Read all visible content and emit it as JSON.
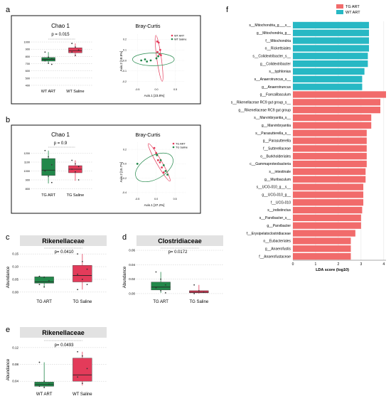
{
  "colors": {
    "teal": "#27b8c4",
    "salmon": "#f16b6b",
    "green": "#22884a",
    "red": "#e33b5a",
    "gray_bar": "#e2e2e2"
  },
  "panels": {
    "a": {
      "letter": "a",
      "chao_title": "Chao 1",
      "pvalue": "p = 0.015",
      "bray_title": "Bray-Curtis",
      "groups": [
        "WT ART",
        "WT Saline"
      ],
      "legend": [
        "WT ART",
        "WT Saline"
      ],
      "axis1": "Axis.1 [23.8%]",
      "axis2": "Axis.2 [18.8%]",
      "yticks": [
        "1000",
        "900",
        "800",
        "700",
        "600",
        "500",
        "400"
      ],
      "bray_yticks": [
        "0.2",
        "0.1",
        "0.0",
        "-0.1",
        "-0.2"
      ],
      "bray_xticks": [
        "-0.5",
        "0.0",
        "0.5"
      ]
    },
    "b": {
      "letter": "b",
      "chao_title": "Chao 1",
      "pvalue": "p = 0.9",
      "bray_title": "Bray-Curtis",
      "groups": [
        "TG ART",
        "TG Saline"
      ],
      "legend": [
        "TG ART",
        "TG Saline"
      ],
      "axis1": "Axis.1 [37.2%]",
      "axis2": "Axis.2 [15.7%]",
      "yticks": [
        "1200",
        "1100",
        "1000",
        "900",
        "800"
      ],
      "bray_yticks": [
        "0.2",
        "0.0",
        "-0.2",
        "-0.4"
      ],
      "bray_xticks": [
        "-0.5",
        "0.0",
        "0.5"
      ]
    },
    "c": {
      "letter": "c",
      "title": "Rikenellaceae",
      "pvalue": "p= 0.0410",
      "ylabel": "Abundance",
      "groups": [
        "TG ART",
        "TG Saline"
      ],
      "yticks": [
        "0.15",
        "0.10",
        "0.05",
        "0.00"
      ]
    },
    "d": {
      "letter": "d",
      "title": "Clostridiaceae",
      "pvalue": "p= 0.0172",
      "ylabel": "Abundance",
      "groups": [
        "TG ART",
        "TG Saline"
      ],
      "yticks": [
        "0.06",
        "0.04",
        "0.02",
        "0.00"
      ]
    },
    "e": {
      "letter": "e",
      "title": "Rikenellaceae",
      "pvalue": "p= 0.0493",
      "ylabel": "Abundance",
      "groups": [
        "WT ART",
        "WT Saline"
      ],
      "yticks": [
        "0.12",
        "0.08",
        "0.04"
      ]
    },
    "f": {
      "letter": "f"
    }
  },
  "chart_data": [
    {
      "type": "bar",
      "title": "",
      "xlabel": "LDA score (log10)",
      "ylabel": "",
      "xlim": [
        0,
        4.1
      ],
      "xticks": [
        "0",
        "1",
        "2",
        "3",
        "4"
      ],
      "legend": [
        {
          "name": "TG ART",
          "color": "#f16b6b"
        },
        {
          "name": "WT ART",
          "color": "#27b8c4"
        }
      ],
      "legend_position": "top-right",
      "categories": [
        "s__Mitochondria_g___s__",
        "g__Mitochondria_g__",
        "f__Mitochondria",
        "o__Rickettsiales",
        "s__Colidextribacter_s__",
        "g__Colidextribacter",
        "s__typhlonius",
        "s__Anaerotruncus_s__",
        "g__Anaerotruncus",
        "g__Faecalibaculum",
        "s__Rikenellaceae RC9 gut group_s__",
        "g__Rikenellaceae RC9 gut group",
        "s__Marvinbryantia_s__",
        "g__Marvinbryantia",
        "s__Parasutterella_s__",
        "g__Parasutterella",
        "f__Sutterellaceae",
        "o__Burkholderiales",
        "c__Gammaproteobacteria",
        "s__intestinale",
        "g__Muribaculum",
        "s__UCG-010_g__s__",
        "g__UCG-010_g__",
        "f__UCG-010",
        "s__indistinctus",
        "s__Parvibacter_s__",
        "g__Parvibacter",
        "f__Erysipelatoclostridiaceae",
        "o__Eubacteriales",
        "g__Anaerofustis",
        "f__Anaerofustaceae"
      ],
      "values": [
        3.35,
        3.35,
        3.35,
        3.35,
        3.3,
        3.3,
        3.15,
        3.05,
        3.05,
        4.1,
        3.85,
        3.85,
        3.45,
        3.45,
        3.25,
        3.25,
        3.25,
        3.25,
        3.25,
        3.2,
        3.2,
        3.1,
        3.1,
        3.1,
        3.05,
        3.0,
        3.0,
        2.75,
        2.55,
        2.55,
        2.55
      ],
      "groups": [
        "WT ART",
        "WT ART",
        "WT ART",
        "WT ART",
        "WT ART",
        "WT ART",
        "WT ART",
        "WT ART",
        "WT ART",
        "TG ART",
        "TG ART",
        "TG ART",
        "TG ART",
        "TG ART",
        "TG ART",
        "TG ART",
        "TG ART",
        "TG ART",
        "TG ART",
        "TG ART",
        "TG ART",
        "TG ART",
        "TG ART",
        "TG ART",
        "TG ART",
        "TG ART",
        "TG ART",
        "TG ART",
        "TG ART",
        "TG ART",
        "TG ART"
      ]
    },
    {
      "type": "box",
      "title": "Rikenellaceae",
      "ylabel": "Abundance",
      "ylim": [
        -0.02,
        0.17
      ],
      "categories": [
        "TG ART",
        "TG Saline"
      ],
      "series": [
        {
          "name": "TG ART",
          "q1": 0.035,
          "median": 0.04,
          "q3": 0.06,
          "whisker_low": 0.02,
          "whisker_high": 0.062,
          "points": [
            0.062,
            0.058,
            0.045,
            0.03,
            0.02
          ]
        },
        {
          "name": "TG Saline",
          "q1": 0.04,
          "median": 0.065,
          "q3": 0.105,
          "whisker_low": 0.01,
          "whisker_high": 0.15,
          "points": [
            0.15,
            0.12,
            0.09,
            0.07,
            0.05,
            0.03,
            0.01
          ]
        }
      ]
    },
    {
      "type": "box",
      "title": "Clostridiaceae",
      "ylabel": "Abundance",
      "ylim": [
        -0.005,
        0.062
      ],
      "categories": [
        "TG ART",
        "TG Saline"
      ],
      "series": [
        {
          "name": "TG ART",
          "q1": 0.005,
          "median": 0.009,
          "q3": 0.016,
          "whisker_low": 0.001,
          "whisker_high": 0.03,
          "points": [
            0.03,
            0.02,
            0.012,
            0.008,
            0.004,
            0.001
          ]
        },
        {
          "name": "TG Saline",
          "q1": 0.001,
          "median": 0.002,
          "q3": 0.004,
          "whisker_low": 0.0,
          "whisker_high": 0.012,
          "points": [
            0.012,
            0.004,
            0.002,
            0.0
          ]
        }
      ]
    },
    {
      "type": "box",
      "title": "Rikenellaceae",
      "ylabel": "Abundance",
      "ylim": [
        0.02,
        0.135
      ],
      "categories": [
        "WT ART",
        "WT Saline"
      ],
      "series": [
        {
          "name": "WT ART",
          "q1": 0.028,
          "median": 0.032,
          "q3": 0.038,
          "whisker_low": 0.025,
          "whisker_high": 0.085,
          "points": [
            0.085,
            0.04,
            0.033,
            0.028,
            0.025
          ]
        },
        {
          "name": "WT Saline",
          "q1": 0.04,
          "median": 0.055,
          "q3": 0.095,
          "whisker_low": 0.03,
          "whisker_high": 0.11,
          "points": [
            0.11,
            0.1,
            0.07,
            0.05,
            0.035
          ]
        }
      ]
    },
    {
      "type": "box",
      "title": "Chao 1",
      "ylim": [
        380,
        1030
      ],
      "categories": [
        "WT ART",
        "WT Saline"
      ],
      "series": [
        {
          "name": "WT ART",
          "q1": 735,
          "median": 760,
          "q3": 785,
          "whisker_low": 700,
          "whisker_high": 860,
          "points": [
            860,
            790,
            765,
            740,
            705,
            690
          ]
        },
        {
          "name": "WT Saline",
          "q1": 850,
          "median": 880,
          "q3": 920,
          "whisker_low": 800,
          "whisker_high": 980,
          "points": [
            980,
            930,
            890,
            860,
            815
          ]
        }
      ]
    },
    {
      "type": "box",
      "title": "Chao 1",
      "ylim": [
        780,
        1260
      ],
      "categories": [
        "TG ART",
        "TG Saline"
      ],
      "series": [
        {
          "name": "TG ART",
          "q1": 950,
          "median": 1010,
          "q3": 1140,
          "whisker_low": 860,
          "whisker_high": 1230,
          "points": [
            1230,
            1160,
            1070,
            1000,
            940,
            870
          ]
        },
        {
          "name": "TG Saline",
          "q1": 980,
          "median": 1020,
          "q3": 1060,
          "whisker_low": 890,
          "whisker_high": 1120,
          "points": [
            1120,
            1080,
            1050,
            1020,
            990,
            900
          ]
        }
      ]
    },
    {
      "type": "scatter",
      "title": "Bray-Curtis",
      "xlabel": "Axis.1 [23.8%]",
      "ylabel": "Axis.2 [18.8%]",
      "xlim": [
        -0.75,
        0.75
      ],
      "ylim": [
        -0.25,
        0.25
      ],
      "series": [
        {
          "name": "WT ART",
          "x": [
            0.02,
            0.06,
            0.1,
            0.03,
            0.08,
            0.12
          ],
          "y": [
            0.18,
            0.17,
            0.1,
            0.08,
            0.06,
            0.05
          ]
        },
        {
          "name": "WT Saline",
          "x": [
            -0.4,
            -0.3,
            -0.25,
            -0.15,
            0.0,
            0.05
          ],
          "y": [
            0.0,
            0.01,
            -0.01,
            0.0,
            0.02,
            0.04
          ]
        }
      ]
    },
    {
      "type": "scatter",
      "title": "Bray-Curtis",
      "xlabel": "Axis.1 [37.2%]",
      "ylabel": "Axis.2 [15.7%]",
      "xlim": [
        -0.75,
        0.8
      ],
      "ylim": [
        -0.45,
        0.3
      ],
      "series": [
        {
          "name": "TG ART",
          "x": [
            -0.05,
            0.0,
            0.05,
            0.1,
            0.15,
            0.2
          ],
          "y": [
            0.22,
            0.15,
            0.05,
            0.02,
            -0.05,
            -0.12
          ]
        },
        {
          "name": "TG Saline",
          "x": [
            -0.5,
            0.02,
            0.12,
            0.2,
            0.25,
            0.3
          ],
          "y": [
            0.0,
            0.12,
            0.05,
            -0.02,
            -0.1,
            -0.15
          ]
        }
      ]
    }
  ]
}
